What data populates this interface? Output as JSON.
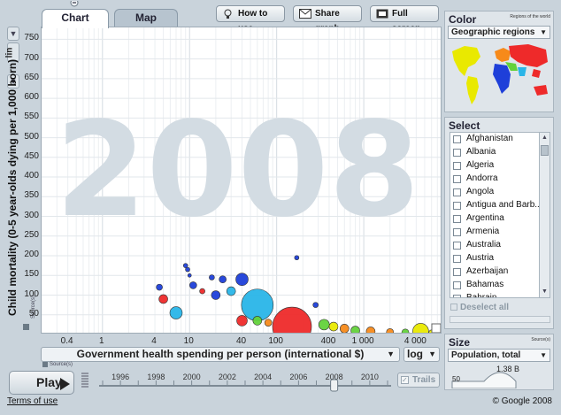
{
  "tabs": {
    "chart": "Chart",
    "map": "Map"
  },
  "toolbar": {
    "how_to_use": "How to use",
    "share_graph": "Share graph",
    "full_screen": "Full screen"
  },
  "y_axis": {
    "label": "Child mortality (0-5 year-olds dying per 1,000 born)",
    "scale_label": "lin",
    "ticks": [
      "750",
      "700",
      "650",
      "600",
      "550",
      "500",
      "450",
      "400",
      "350",
      "300",
      "250",
      "200",
      "150",
      "100",
      "50"
    ],
    "source": "Source(s)"
  },
  "x_axis": {
    "label": "Government health spending per person (international $)",
    "scale_label": "log",
    "ticks": [
      "0.4",
      "1",
      "4",
      "10",
      "40",
      "100",
      "400",
      "1 000",
      "4 000"
    ],
    "source": "Source(s)"
  },
  "year_watermark": "2008",
  "timeline": {
    "play_label": "Play",
    "years": [
      "1996",
      "1998",
      "2000",
      "2002",
      "2004",
      "2006",
      "2008",
      "2010"
    ],
    "current": "2008",
    "trails_label": "Trails"
  },
  "color_panel": {
    "title": "Color",
    "subtitle": "Regions of the world",
    "selected": "Geographic regions"
  },
  "select_panel": {
    "title": "Select",
    "countries": [
      "Afghanistan",
      "Albania",
      "Algeria",
      "Andorra",
      "Angola",
      "Antigua and Barb...",
      "Argentina",
      "Armenia",
      "Australia",
      "Austria",
      "Azerbaijan",
      "Bahamas",
      "Bahrain"
    ],
    "deselect_label": "Deselect all"
  },
  "size_panel": {
    "title": "Size",
    "subtitle": "Source(s)",
    "selected": "Population, total",
    "max_value": "1.38 B",
    "min_value": "50"
  },
  "footer": {
    "terms": "Terms of use",
    "copyright": "© Google 2008"
  },
  "colors": {
    "south_asia": "#29b5e8",
    "east_asia": "#ee2a2a",
    "africa": "#1e3fd9",
    "americas": "#e9e900",
    "europe": "#f78a1a",
    "middle_east": "#63d23b"
  },
  "chart_data": {
    "type": "scatter",
    "title": "2008",
    "xlabel": "Government health spending per person (international $)",
    "ylabel": "Child mortality (0-5 year-olds dying per 1,000 born)",
    "x_scale": "log",
    "xlim": [
      0.2,
      8000
    ],
    "ylim": [
      0,
      780
    ],
    "points": [
      {
        "x": 60,
        "y": 75,
        "size": 18,
        "color": "#29b5e8"
      },
      {
        "x": 150,
        "y": 20,
        "size": 22,
        "color": "#ee2a2a"
      },
      {
        "x": 40,
        "y": 140,
        "size": 7,
        "color": "#1e3fd9"
      },
      {
        "x": 7,
        "y": 55,
        "size": 7,
        "color": "#29b5e8"
      },
      {
        "x": 5,
        "y": 90,
        "size": 5,
        "color": "#ee2a2a"
      },
      {
        "x": 4.5,
        "y": 120,
        "size": 3.5,
        "color": "#1e3fd9"
      },
      {
        "x": 9,
        "y": 175,
        "size": 2.5,
        "color": "#1e3fd9"
      },
      {
        "x": 9.5,
        "y": 165,
        "size": 2.5,
        "color": "#1e3fd9"
      },
      {
        "x": 10,
        "y": 150,
        "size": 2,
        "color": "#1e3fd9"
      },
      {
        "x": 11,
        "y": 125,
        "size": 4,
        "color": "#1e3fd9"
      },
      {
        "x": 14,
        "y": 110,
        "size": 3,
        "color": "#ee2a2a"
      },
      {
        "x": 18,
        "y": 145,
        "size": 3,
        "color": "#1e3fd9"
      },
      {
        "x": 24,
        "y": 140,
        "size": 4,
        "color": "#1e3fd9"
      },
      {
        "x": 20,
        "y": 100,
        "size": 5,
        "color": "#1e3fd9"
      },
      {
        "x": 30,
        "y": 110,
        "size": 5,
        "color": "#29b5e8"
      },
      {
        "x": 40,
        "y": 35,
        "size": 6,
        "color": "#ee2a2a"
      },
      {
        "x": 170,
        "y": 195,
        "size": 2.5,
        "color": "#1e3fd9"
      },
      {
        "x": 60,
        "y": 35,
        "size": 5,
        "color": "#63d23b"
      },
      {
        "x": 80,
        "y": 30,
        "size": 4,
        "color": "#f78a1a"
      },
      {
        "x": 280,
        "y": 75,
        "size": 3,
        "color": "#1e3fd9"
      },
      {
        "x": 350,
        "y": 25,
        "size": 6,
        "color": "#63d23b"
      },
      {
        "x": 450,
        "y": 20,
        "size": 5,
        "color": "#e9e900"
      },
      {
        "x": 600,
        "y": 15,
        "size": 5,
        "color": "#f78a1a"
      },
      {
        "x": 800,
        "y": 10,
        "size": 5,
        "color": "#63d23b"
      },
      {
        "x": 1200,
        "y": 8,
        "size": 5,
        "color": "#f78a1a"
      },
      {
        "x": 2000,
        "y": 6,
        "size": 4,
        "color": "#f78a1a"
      },
      {
        "x": 3000,
        "y": 5,
        "size": 4,
        "color": "#63d23b"
      },
      {
        "x": 4500,
        "y": 8,
        "size": 9,
        "color": "#e9e900"
      },
      {
        "x": 6000,
        "y": 5,
        "size": 3,
        "color": "#e9e900"
      }
    ]
  }
}
